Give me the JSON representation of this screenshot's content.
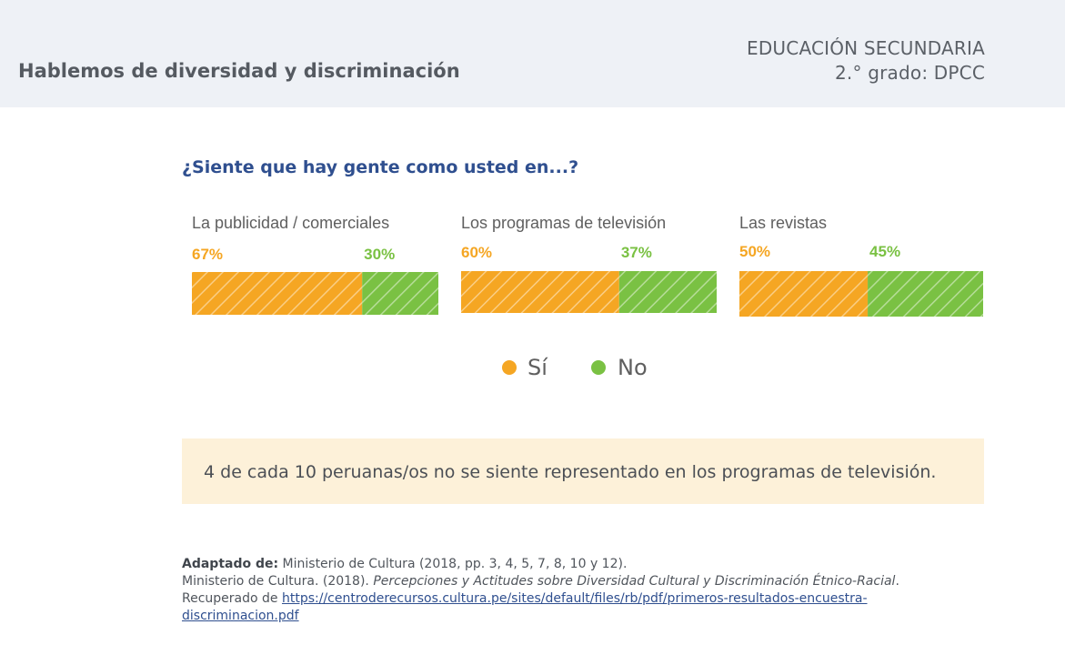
{
  "header": {
    "title": "Hablemos de diversidad y discriminación",
    "level": "EDUCACIÓN SECUNDARIA",
    "grade": "2.° grado: DPCC"
  },
  "question": "¿Siente que hay gente como usted en...?",
  "chart_data": {
    "type": "bar",
    "orientation": "horizontal-stacked",
    "title": "¿Siente que hay gente como usted en...?",
    "categories": [
      "La publicidad / comerciales",
      "Los programas de televisión",
      "Las revistas"
    ],
    "series": [
      {
        "name": "Sí",
        "color": "#f5a623",
        "values": [
          67,
          60,
          50
        ],
        "labels": [
          "67%",
          "60%",
          "50%"
        ]
      },
      {
        "name": "No",
        "color": "#7ac143",
        "values": [
          30,
          37,
          45
        ],
        "labels": [
          "30%",
          "37%",
          "45%"
        ]
      }
    ],
    "legend": [
      "Sí",
      "No"
    ],
    "xlim": [
      0,
      100
    ]
  },
  "callout": "4 de cada 10 peruanas/os no se siente representado en los programas de televisión.",
  "refs": {
    "adapted_label": "Adaptado de:",
    "adapted_text": "Ministerio de Cultura (2018, pp. 3, 4, 5, 7, 8, 10 y 12).",
    "citation_prefix": "Ministerio de Cultura. (2018). ",
    "citation_title": "Percepciones y Actitudes sobre Diversidad Cultural y Discriminación Étnico-Racial",
    "citation_suffix": ".",
    "retrieved": "Recuperado de ",
    "url_line1": "https://centroderecursos.cultura.pe/sites/default/files/rb/pdf/primeros-resultados-encuestra-",
    "url_line2": "discriminacion.pdf"
  }
}
